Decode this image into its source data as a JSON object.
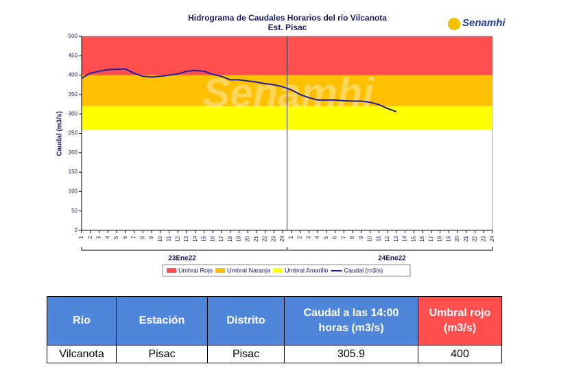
{
  "logo": "Senamhi",
  "chart_data": {
    "type": "line",
    "title": "Hidrograma de Caudales Horarios del río Vilcanota",
    "subtitle": "Est. Pisac",
    "y_label": "Caudal  (m3/s)",
    "categories": [
      "1",
      "2",
      "3",
      "4",
      "5",
      "6",
      "7",
      "8",
      "9",
      "10",
      "11",
      "12",
      "13",
      "14",
      "15",
      "16",
      "17",
      "18",
      "19",
      "20",
      "21",
      "22",
      "23",
      "24",
      "1",
      "2",
      "3",
      "4",
      "5",
      "6",
      "7",
      "8",
      "9",
      "10",
      "11",
      "12",
      "13",
      "14",
      "15",
      "16",
      "17",
      "18",
      "19",
      "20",
      "21",
      "22",
      "23",
      "24"
    ],
    "group_labels": [
      "23Ene22",
      "24Ene22"
    ],
    "ylim": [
      0,
      500
    ],
    "yticks": [
      0,
      50,
      100,
      150,
      200,
      250,
      300,
      350,
      400,
      450,
      500
    ],
    "thresholds": [
      {
        "name": "Umbral Rojo",
        "color": "#ff4f4f",
        "value": 400
      },
      {
        "name": "Umbral Naranja",
        "color": "#ffc000",
        "value": 320
      },
      {
        "name": "Umbral Amarillo",
        "color": "#ffff00",
        "value": 260
      }
    ],
    "series": [
      {
        "name": "Caudal (m3/s)",
        "color": "#1c1ca0",
        "values": [
          392,
          405,
          410,
          414,
          415,
          416,
          405,
          397,
          395,
          397,
          400,
          403,
          410,
          412,
          410,
          402,
          397,
          388,
          388,
          385,
          382,
          378,
          375,
          370,
          362,
          350,
          342,
          336,
          336,
          336,
          334,
          333,
          333,
          330,
          324,
          314,
          305.9,
          null,
          null,
          null,
          null,
          null,
          null,
          null,
          null,
          null,
          null,
          null
        ]
      }
    ]
  },
  "table": {
    "headers": [
      "Río",
      "Estación",
      "Distrito",
      "Caudal a las 14:00 horas (m3/s)",
      "Umbral rojo (m3/s)"
    ],
    "rows": [
      [
        "Vilcanota",
        "Pisac",
        "Pisac",
        "305.9",
        "400"
      ]
    ]
  }
}
